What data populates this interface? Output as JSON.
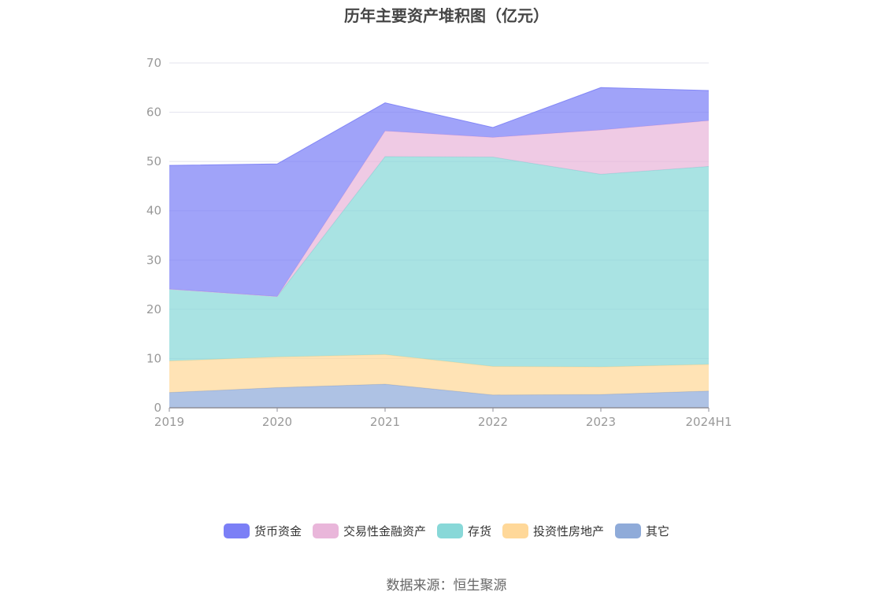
{
  "chart_data": {
    "type": "area",
    "title": "历年主要资产堆积图（亿元）",
    "categories": [
      "2019",
      "2020",
      "2021",
      "2022",
      "2023",
      "2024H1"
    ],
    "ylim": [
      0,
      70
    ],
    "yticks": [
      0,
      10,
      20,
      30,
      40,
      50,
      60,
      70
    ],
    "stacked": true,
    "grid": true,
    "legend_position": "bottom",
    "series": [
      {
        "name": "其它",
        "color": "#8fabd9",
        "values": [
          3.1,
          4.1,
          4.8,
          2.6,
          2.7,
          3.4
        ]
      },
      {
        "name": "投资性房地产",
        "color": "#ffd899",
        "values": [
          6.4,
          6.2,
          6.0,
          5.8,
          5.6,
          5.4
        ]
      },
      {
        "name": "存货",
        "color": "#88d8d8",
        "values": [
          14.6,
          12.3,
          40.2,
          42.5,
          39.1,
          40.2
        ]
      },
      {
        "name": "交易性金融资产",
        "color": "#e9b6da",
        "values": [
          0,
          0,
          5.2,
          4.0,
          9.0,
          9.3
        ]
      },
      {
        "name": "货币资金",
        "color": "#7b7ff6",
        "values": [
          25.1,
          26.9,
          5.7,
          2.0,
          8.6,
          6.1
        ]
      }
    ],
    "legend_order": [
      "货币资金",
      "交易性金融资产",
      "存货",
      "投资性房地产",
      "其它"
    ]
  },
  "source": "数据来源：恒生聚源"
}
